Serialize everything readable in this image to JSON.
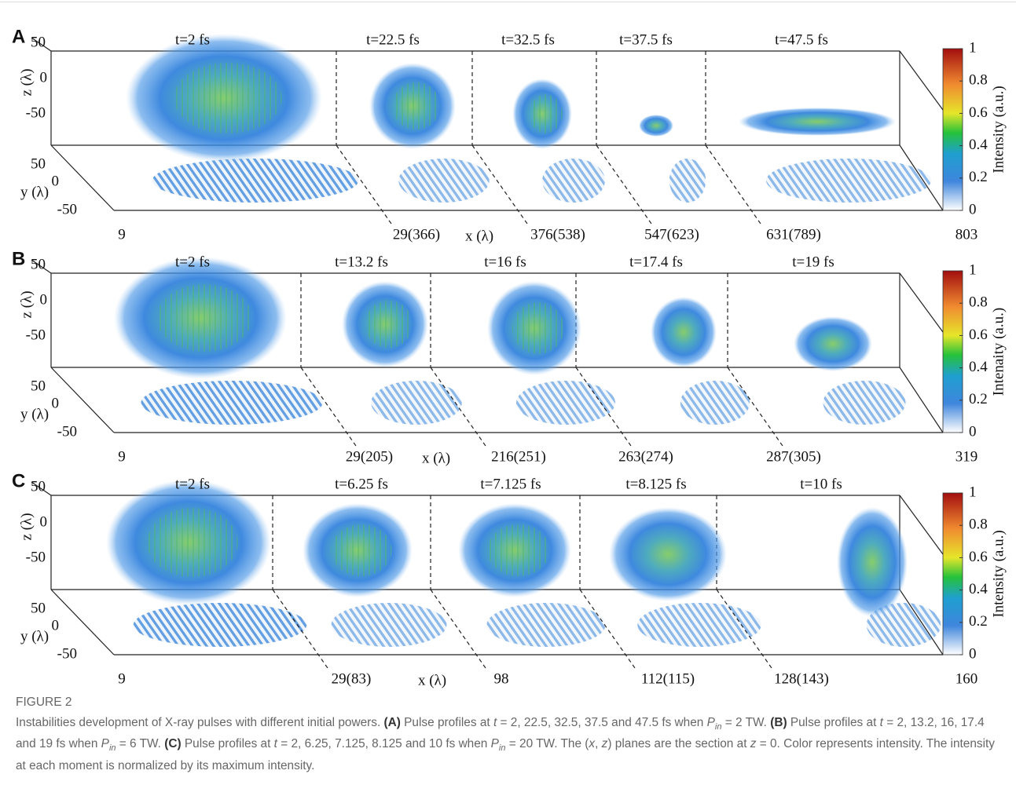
{
  "panels": [
    {
      "label": "A",
      "times": [
        "t=2 fs",
        "t=22.5 fs",
        "t=32.5 fs",
        "t=37.5 fs",
        "t=47.5 fs"
      ],
      "x_labels": [
        "9",
        "29(366)",
        "376(538)",
        "547(623)",
        "631(789)",
        "803"
      ],
      "x_axis_label": "x (λ)",
      "z_axis_label": "z (λ)",
      "y_axis_label": "y (λ)",
      "z_ticks": [
        50,
        0,
        -50
      ],
      "y_ticks": [
        50,
        0,
        -50
      ],
      "colorbar": {
        "label": "Intensity (a.u.)",
        "ticks": [
          0,
          0.2,
          0.4,
          0.6,
          0.8,
          1
        ]
      }
    },
    {
      "label": "B",
      "times": [
        "t=2 fs",
        "t=13.2 fs",
        "t=16 fs",
        "t=17.4 fs",
        "t=19 fs"
      ],
      "x_labels": [
        "9",
        "29(205)",
        "216(251)",
        "263(274)",
        "287(305)",
        "319"
      ],
      "x_axis_label": "x (λ)",
      "z_axis_label": "z (λ)",
      "y_axis_label": "y (λ)",
      "z_ticks": [
        50,
        0,
        -50
      ],
      "y_ticks": [
        50,
        0,
        -50
      ],
      "colorbar": {
        "label": "Intenaity (a.u.)",
        "ticks": [
          0,
          0.2,
          0.4,
          0.6,
          0.8,
          1
        ]
      }
    },
    {
      "label": "C",
      "times": [
        "t=2 fs",
        "t=6.25 fs",
        "t=7.125 fs",
        "t=8.125 fs",
        "t=10 fs"
      ],
      "x_labels": [
        "9",
        "29(83)",
        "98",
        "112(115)",
        "128(143)",
        "160"
      ],
      "x_axis_label": "x (λ)",
      "z_axis_label": "z (λ)",
      "y_axis_label": "y (λ)",
      "z_ticks": [
        50,
        0,
        -50
      ],
      "y_ticks": [
        50,
        0,
        -50
      ],
      "colorbar": {
        "label": "Intensity (a.u.)",
        "ticks": [
          0,
          0.2,
          0.4,
          0.6,
          0.8,
          1
        ]
      }
    }
  ],
  "caption": {
    "figure": "FIGURE 2",
    "parts": [
      {
        "text": "Instabilities development of X-ray pulses with different initial powers. ",
        "style": "n"
      },
      {
        "text": "(A)",
        "style": "b"
      },
      {
        "text": " Pulse profiles at ",
        "style": "n"
      },
      {
        "text": "t",
        "style": "i"
      },
      {
        "text": " = 2, 22.5, 32.5, 37.5 and 47.5 fs when ",
        "style": "n"
      },
      {
        "text": "P",
        "style": "i"
      },
      {
        "text": "in",
        "style": "sub"
      },
      {
        "text": " = 2 TW. ",
        "style": "n"
      },
      {
        "text": "(B)",
        "style": "b"
      },
      {
        "text": " Pulse profiles at ",
        "style": "n"
      },
      {
        "text": "t",
        "style": "i"
      },
      {
        "text": " = 2, 13.2, 16, 17.4 and 19 fs when ",
        "style": "n"
      },
      {
        "text": "P",
        "style": "i"
      },
      {
        "text": "in",
        "style": "sub"
      },
      {
        "text": " = 6 TW. ",
        "style": "n"
      },
      {
        "text": "(C)",
        "style": "b"
      },
      {
        "text": " Pulse profiles at ",
        "style": "n"
      },
      {
        "text": "t",
        "style": "i"
      },
      {
        "text": " = 2, 6.25, 7.125, 8.125 and 10 fs when ",
        "style": "n"
      },
      {
        "text": "P",
        "style": "i"
      },
      {
        "text": "in",
        "style": "sub"
      },
      {
        "text": " = 20 TW. The (",
        "style": "n"
      },
      {
        "text": "x",
        "style": "i"
      },
      {
        "text": ", ",
        "style": "n"
      },
      {
        "text": "z",
        "style": "i"
      },
      {
        "text": ") planes are the section at ",
        "style": "n"
      },
      {
        "text": "z",
        "style": "i"
      },
      {
        "text": " = 0. Color represents intensity. The intensity at each moment is normalized by its maximum intensity.",
        "style": "n"
      }
    ]
  }
}
